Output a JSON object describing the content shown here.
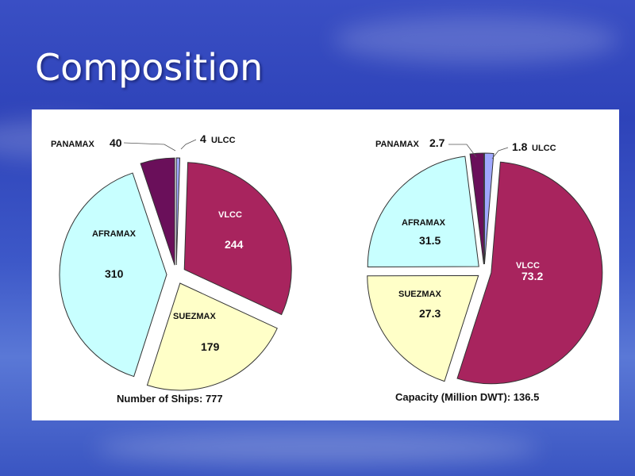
{
  "slide": {
    "title": "Composition"
  },
  "colors": {
    "VLCC": "#a8245e",
    "SUEZMAX": "#ffffc8",
    "AFRAMAX": "#c8ffff",
    "PANAMAX": "#6a0f5a",
    "ULCC": "#a0a8ff"
  },
  "chart_data": [
    {
      "type": "pie",
      "caption": "Number of Ships:  777",
      "slices": [
        {
          "label": "ULCC",
          "value": 4,
          "value_text": "4"
        },
        {
          "label": "VLCC",
          "value": 244,
          "value_text": "244"
        },
        {
          "label": "SUEZMAX",
          "value": 179,
          "value_text": "179"
        },
        {
          "label": "AFRAMAX",
          "value": 310,
          "value_text": "310"
        },
        {
          "label": "PANAMAX",
          "value": 40,
          "value_text": "40"
        }
      ]
    },
    {
      "type": "pie",
      "caption": "Capacity (Million DWT):  136.5",
      "slices": [
        {
          "label": "ULCC",
          "value": 1.8,
          "value_text": "1.8"
        },
        {
          "label": "VLCC",
          "value": 73.2,
          "value_text": "73.2"
        },
        {
          "label": "SUEZMAX",
          "value": 27.3,
          "value_text": "27.3"
        },
        {
          "label": "AFRAMAX",
          "value": 31.5,
          "value_text": "31.5"
        },
        {
          "label": "PANAMAX",
          "value": 2.7,
          "value_text": "2.7"
        }
      ]
    }
  ]
}
